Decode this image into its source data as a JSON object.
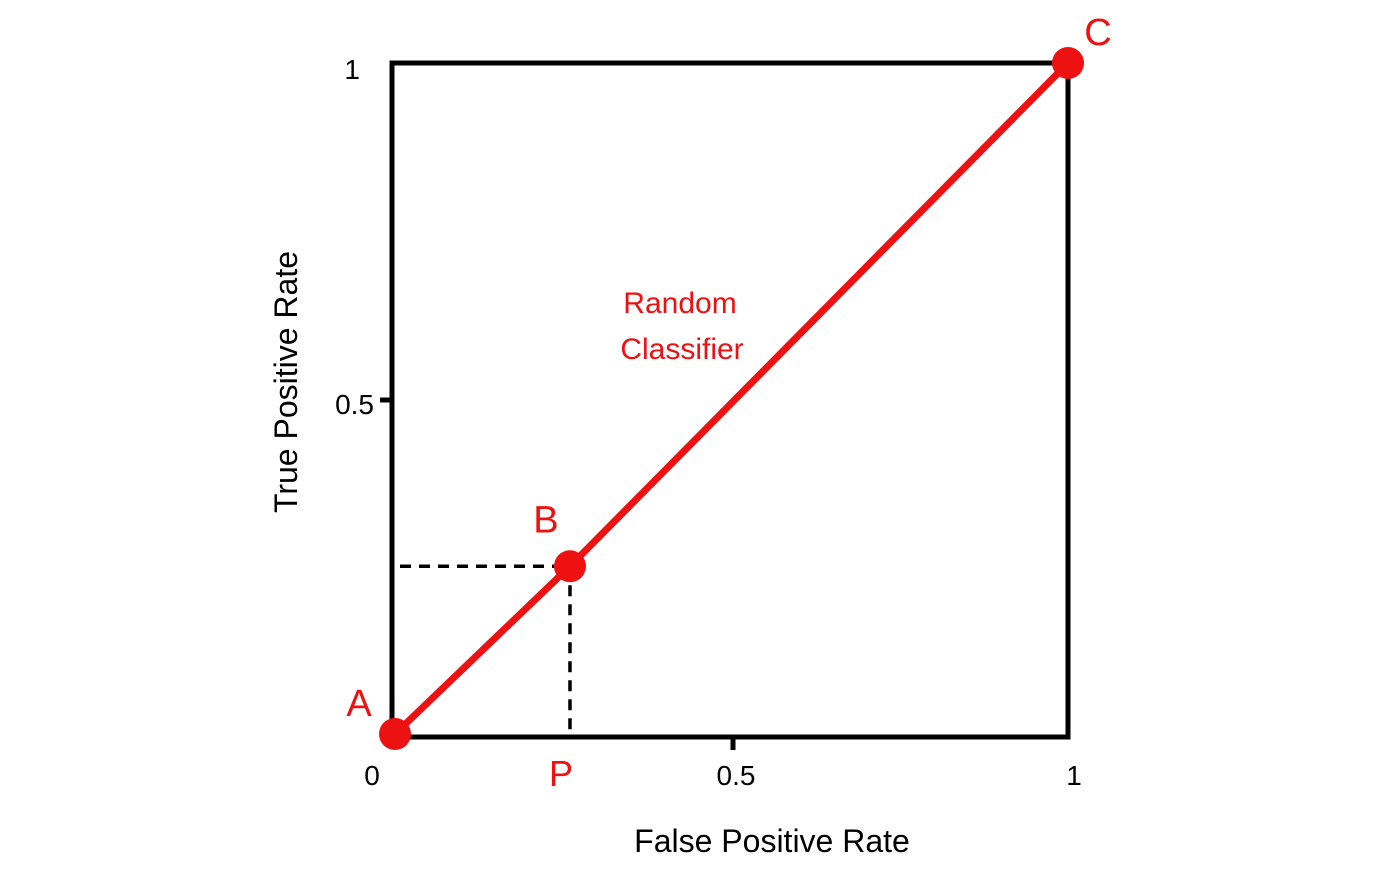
{
  "chart_data": {
    "type": "line",
    "xlabel": "False Positive Rate",
    "ylabel": "True Positive Rate",
    "xlim": [
      0,
      1
    ],
    "ylim": [
      0,
      1
    ],
    "x_ticks": [
      "0",
      "0.5",
      "1"
    ],
    "y_ticks": [
      "0.5",
      "1"
    ],
    "grid": false,
    "series": [
      {
        "name": "Random Classifier",
        "color": "#ee1111",
        "points": [
          {
            "label": "A",
            "x": 0,
            "y": 0
          },
          {
            "label": "B",
            "x": 0.26,
            "y": 0.25
          },
          {
            "label": "C",
            "x": 1,
            "y": 1
          }
        ]
      }
    ],
    "annotations": {
      "series_label_line1": "Random",
      "series_label_line2": "Classifier",
      "p_label": "P",
      "p_x": 0.26
    },
    "colors": {
      "series": "#ee1111",
      "frame": "#000000",
      "guide": "#000000"
    }
  }
}
